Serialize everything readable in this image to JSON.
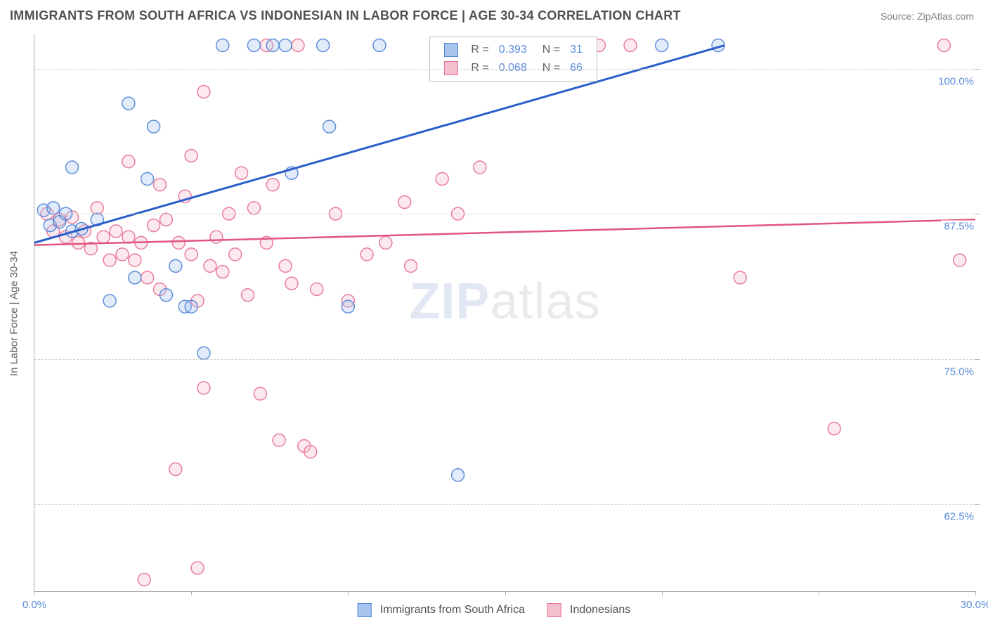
{
  "title": "IMMIGRANTS FROM SOUTH AFRICA VS INDONESIAN IN LABOR FORCE | AGE 30-34 CORRELATION CHART",
  "source": "Source: ZipAtlas.com",
  "y_axis_title": "In Labor Force | Age 30-34",
  "watermark_a": "ZIP",
  "watermark_b": "atlas",
  "chart": {
    "type": "scatter",
    "x_range": [
      0,
      30
    ],
    "y_range": [
      55,
      103
    ],
    "background_color": "#ffffff",
    "grid_color": "#cfcfcf",
    "axis_color": "#b0b0b0",
    "y_gridlines": [
      62.5,
      75.0,
      87.5,
      100.0
    ],
    "y_tick_labels": [
      "62.5%",
      "75.0%",
      "87.5%",
      "100.0%"
    ],
    "x_ticks": [
      0,
      5,
      10,
      15,
      20,
      25,
      30
    ],
    "x_tick_labels_shown": {
      "0": "0.0%",
      "30": "30.0%"
    },
    "marker_radius": 9,
    "text_color_axis_value": "#5b8bd8",
    "text_color_label": "#606060",
    "title_fontsize": 18,
    "axis_fontsize": 15
  },
  "series": [
    {
      "name": "Immigrants from South Africa",
      "color_fill": "#a8c5ef",
      "color_stroke": "#4f83d6",
      "line_color": "#2a5fc9",
      "line_width": 3,
      "R": "0.393",
      "N": "31",
      "trend": {
        "x1": 0,
        "y1": 85.0,
        "x2": 22.0,
        "y2": 102.0
      },
      "points": [
        [
          0.3,
          87.8
        ],
        [
          0.5,
          86.5
        ],
        [
          0.6,
          88.0
        ],
        [
          0.8,
          86.8
        ],
        [
          1.0,
          87.5
        ],
        [
          1.2,
          86.0
        ],
        [
          1.5,
          86.2
        ],
        [
          1.2,
          91.5
        ],
        [
          2.0,
          87.0
        ],
        [
          2.4,
          80.0
        ],
        [
          3.0,
          97.0
        ],
        [
          3.2,
          82.0
        ],
        [
          3.6,
          90.5
        ],
        [
          3.8,
          95.0
        ],
        [
          4.2,
          80.5
        ],
        [
          4.5,
          83.0
        ],
        [
          4.8,
          79.5
        ],
        [
          5.0,
          79.5
        ],
        [
          5.4,
          75.5
        ],
        [
          6.0,
          102.0
        ],
        [
          7.0,
          102.0
        ],
        [
          7.6,
          102.0
        ],
        [
          8.0,
          102.0
        ],
        [
          8.2,
          91.0
        ],
        [
          9.2,
          102.0
        ],
        [
          9.4,
          95.0
        ],
        [
          10.0,
          79.5
        ],
        [
          11.0,
          102.0
        ],
        [
          13.5,
          65.0
        ],
        [
          20.0,
          102.0
        ],
        [
          21.8,
          102.0
        ]
      ]
    },
    {
      "name": "Indonesians",
      "color_fill": "#f6bfcd",
      "color_stroke": "#e76f91",
      "line_color": "#e15580",
      "line_width": 2.5,
      "R": "0.068",
      "N": "66",
      "trend": {
        "x1": 0,
        "y1": 84.8,
        "x2": 30.0,
        "y2": 87.0
      },
      "points": [
        [
          0.4,
          87.5
        ],
        [
          0.6,
          86.0
        ],
        [
          0.8,
          87.0
        ],
        [
          1.0,
          85.5
        ],
        [
          1.2,
          87.2
        ],
        [
          1.4,
          85.0
        ],
        [
          1.6,
          86.0
        ],
        [
          1.8,
          84.5
        ],
        [
          2.0,
          88.0
        ],
        [
          2.2,
          85.5
        ],
        [
          2.4,
          83.5
        ],
        [
          2.6,
          86.0
        ],
        [
          2.8,
          84.0
        ],
        [
          3.0,
          92.0
        ],
        [
          3.0,
          85.5
        ],
        [
          3.2,
          83.5
        ],
        [
          3.4,
          85.0
        ],
        [
          3.6,
          82.0
        ],
        [
          3.8,
          86.5
        ],
        [
          4.0,
          90.0
        ],
        [
          4.0,
          81.0
        ],
        [
          4.2,
          87.0
        ],
        [
          4.5,
          65.5
        ],
        [
          4.6,
          85.0
        ],
        [
          5.0,
          92.5
        ],
        [
          5.0,
          84.0
        ],
        [
          5.2,
          80.0
        ],
        [
          5.4,
          72.5
        ],
        [
          5.4,
          98.0
        ],
        [
          5.6,
          83.0
        ],
        [
          5.8,
          85.5
        ],
        [
          6.0,
          82.5
        ],
        [
          6.2,
          87.5
        ],
        [
          6.4,
          84.0
        ],
        [
          6.6,
          91.0
        ],
        [
          6.8,
          80.5
        ],
        [
          7.0,
          88.0
        ],
        [
          7.2,
          72.0
        ],
        [
          7.4,
          102.0
        ],
        [
          7.4,
          85.0
        ],
        [
          7.6,
          90.0
        ],
        [
          7.8,
          68.0
        ],
        [
          8.0,
          83.0
        ],
        [
          8.2,
          81.5
        ],
        [
          8.4,
          102.0
        ],
        [
          8.6,
          67.5
        ],
        [
          8.8,
          67.0
        ],
        [
          9.0,
          81.0
        ],
        [
          9.6,
          87.5
        ],
        [
          10.0,
          80.0
        ],
        [
          10.6,
          84.0
        ],
        [
          11.2,
          85.0
        ],
        [
          11.8,
          88.5
        ],
        [
          12.0,
          83.0
        ],
        [
          13.0,
          90.5
        ],
        [
          13.5,
          87.5
        ],
        [
          14.2,
          91.5
        ],
        [
          18.0,
          102.0
        ],
        [
          19.0,
          102.0
        ],
        [
          5.2,
          57.0
        ],
        [
          22.5,
          82.0
        ],
        [
          25.5,
          69.0
        ],
        [
          29.0,
          102.0
        ],
        [
          29.5,
          83.5
        ],
        [
          3.5,
          56.0
        ],
        [
          4.8,
          89.0
        ]
      ]
    }
  ],
  "legend_top": {
    "rows": [
      {
        "swatch_fill": "#a8c5ef",
        "swatch_stroke": "#4f83d6",
        "r_label": "R =",
        "r_val": "0.393",
        "n_label": "N =",
        "n_val": "31"
      },
      {
        "swatch_fill": "#f6bfcd",
        "swatch_stroke": "#e76f91",
        "r_label": "R =",
        "r_val": "0.068",
        "n_label": "N =",
        "n_val": "66"
      }
    ]
  },
  "legend_bottom": [
    {
      "swatch_fill": "#a8c5ef",
      "swatch_stroke": "#4f83d6",
      "label": "Immigrants from South Africa"
    },
    {
      "swatch_fill": "#f6bfcd",
      "swatch_stroke": "#e76f91",
      "label": "Indonesians"
    }
  ]
}
